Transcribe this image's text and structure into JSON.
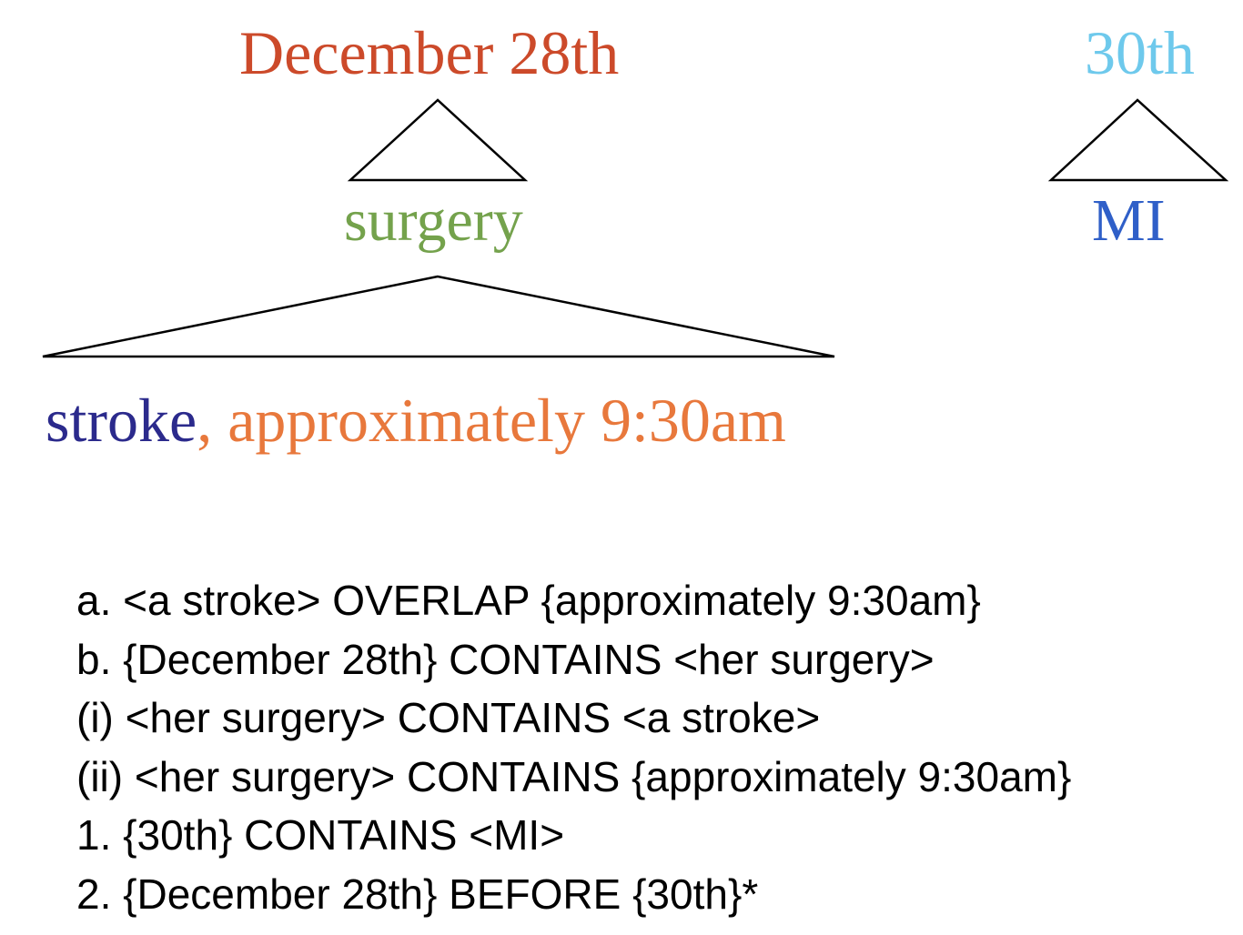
{
  "tree": {
    "left_root": {
      "text": "December 28th",
      "color": "#cc4a2a"
    },
    "right_root": {
      "text": "30th",
      "color": "#6ec9ec"
    },
    "left_child": {
      "text": "surgery",
      "color": "#74a24c"
    },
    "right_child": {
      "text": "MI",
      "color": "#2f5fc8"
    },
    "leaf_event": {
      "text": "stroke",
      "color": "#2b2a8c"
    },
    "leaf_comma": {
      "text": ",",
      "color": "#e8783c"
    },
    "leaf_time": {
      "text": "approximately 9:30am",
      "color": "#e8783c"
    }
  },
  "relations": [
    "a. <a stroke> OVERLAP {approximately 9:30am}",
    "b. {December 28th} CONTAINS <her surgery>",
    "(i) <her surgery> CONTAINS <a stroke>",
    "(ii) <her surgery> CONTAINS {approximately 9:30am}",
    "1. {30th} CONTAINS <MI>",
    "2. {December 28th} BEFORE {30th}*"
  ]
}
